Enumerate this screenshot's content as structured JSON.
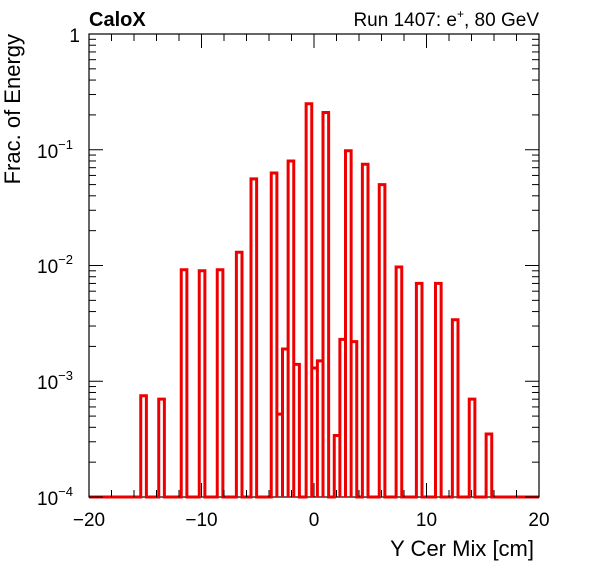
{
  "chart_data": {
    "type": "histogram",
    "experiment_label": "CaloX",
    "run_label_prefix": "Run 1407: e",
    "run_label_superscript": "+",
    "run_label_suffix": ", 80 GeV",
    "xlabel": "Y Cer Mix [cm]",
    "ylabel": "Frac. of Energy",
    "xlim": [
      -20,
      20
    ],
    "ylim": [
      0.0001,
      1
    ],
    "yscale": "log",
    "x_ticks": [
      -20,
      -10,
      0,
      10,
      20
    ],
    "x_tick_labels": [
      "−20",
      "−10",
      "0",
      "10",
      "20"
    ],
    "y_tick_bases": [
      "10",
      "10",
      "10",
      "1"
    ],
    "y_tick_exponents": [
      "−4",
      "−3",
      "−2",
      ""
    ],
    "y_ticks": [
      0.0001,
      0.001,
      0.01,
      1
    ],
    "y_tick_label_1e-1": {
      "base": "10",
      "exponent": "−1"
    },
    "line_color": "#ee0000",
    "bin_width": 0.5,
    "bins": [
      {
        "x0": -15.4,
        "x1": -14.9,
        "y": 0.00075
      },
      {
        "x0": -13.8,
        "x1": -13.3,
        "y": 0.0007
      },
      {
        "x0": -11.8,
        "x1": -11.3,
        "y": 0.0092
      },
      {
        "x0": -10.2,
        "x1": -9.7,
        "y": 0.009
      },
      {
        "x0": -8.6,
        "x1": -8.1,
        "y": 0.0092
      },
      {
        "x0": -6.9,
        "x1": -6.4,
        "y": 0.013
      },
      {
        "x0": -5.6,
        "x1": -5.1,
        "y": 0.056
      },
      {
        "x0": -3.8,
        "x1": -3.3,
        "y": 0.063
      },
      {
        "x0": -3.3,
        "x1": -2.8,
        "y": 0.00052
      },
      {
        "x0": -2.8,
        "x1": -2.3,
        "y": 0.0019
      },
      {
        "x0": -2.3,
        "x1": -1.8,
        "y": 0.08
      },
      {
        "x0": -1.8,
        "x1": -1.3,
        "y": 0.0014
      },
      {
        "x0": -0.7,
        "x1": -0.2,
        "y": 0.25
      },
      {
        "x0": -0.2,
        "x1": 0.3,
        "y": 0.0013
      },
      {
        "x0": 0.3,
        "x1": 0.8,
        "y": 0.0015
      },
      {
        "x0": 0.8,
        "x1": 1.3,
        "y": 0.21
      },
      {
        "x0": 1.8,
        "x1": 2.3,
        "y": 0.00034
      },
      {
        "x0": 2.3,
        "x1": 2.8,
        "y": 0.0023
      },
      {
        "x0": 2.8,
        "x1": 3.3,
        "y": 0.098
      },
      {
        "x0": 3.3,
        "x1": 3.8,
        "y": 0.0022
      },
      {
        "x0": 4.3,
        "x1": 4.8,
        "y": 0.075
      },
      {
        "x0": 5.8,
        "x1": 6.3,
        "y": 0.05
      },
      {
        "x0": 7.3,
        "x1": 7.8,
        "y": 0.0097
      },
      {
        "x0": 9.1,
        "x1": 9.6,
        "y": 0.007
      },
      {
        "x0": 10.8,
        "x1": 11.3,
        "y": 0.007
      },
      {
        "x0": 12.3,
        "x1": 12.8,
        "y": 0.0034
      },
      {
        "x0": 13.8,
        "x1": 14.3,
        "y": 0.0007
      },
      {
        "x0": 15.3,
        "x1": 15.8,
        "y": 0.00035
      }
    ]
  }
}
